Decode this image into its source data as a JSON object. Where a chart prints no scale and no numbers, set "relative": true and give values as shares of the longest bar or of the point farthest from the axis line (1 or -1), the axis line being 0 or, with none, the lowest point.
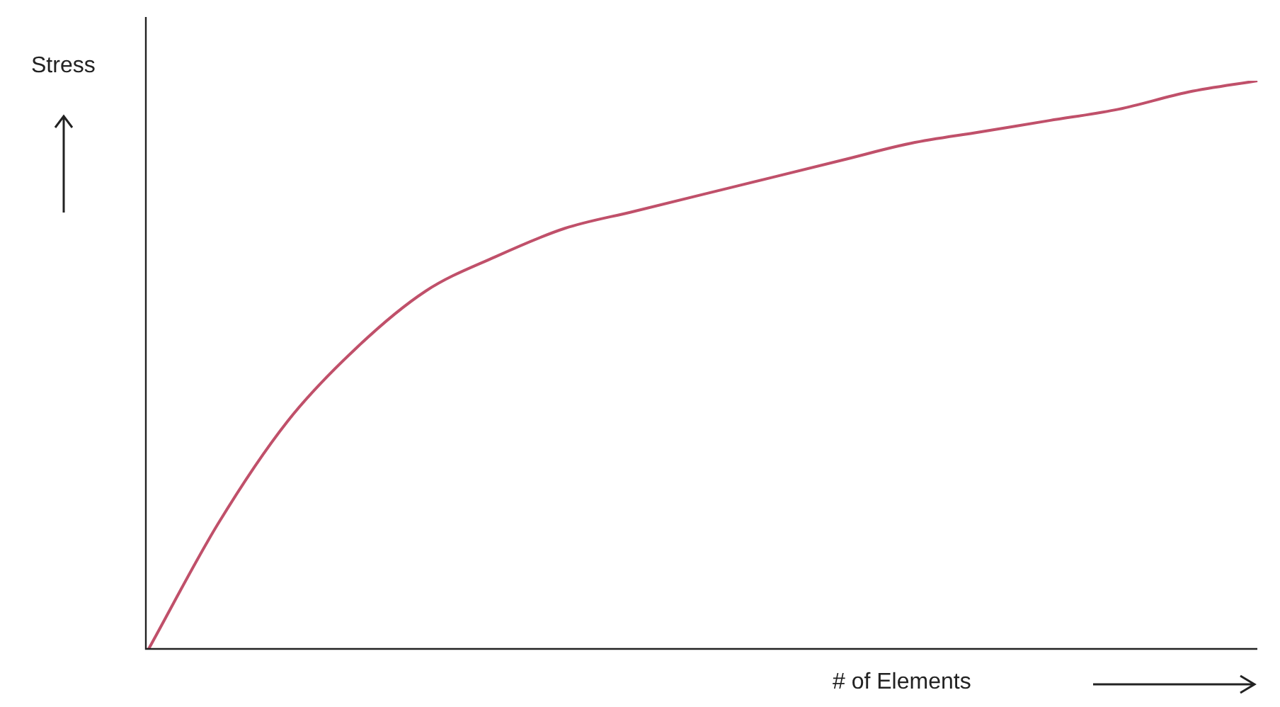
{
  "chart_data": {
    "type": "line",
    "relative": true,
    "ylabel": "Stress",
    "xlabel": "# of Elements",
    "categories": [
      null,
      null,
      null,
      null,
      null,
      null,
      null,
      null,
      null,
      null,
      null,
      null,
      null,
      null,
      null,
      null,
      null
    ],
    "series": [
      {
        "color": "#c0506a",
        "values": [
          0,
          0.22,
          0.4,
          0.53,
          0.63,
          0.69,
          0.74,
          0.77,
          0.8,
          0.83,
          0.86,
          0.89,
          0.91,
          0.93,
          0.95,
          0.98,
          1
        ]
      }
    ]
  }
}
